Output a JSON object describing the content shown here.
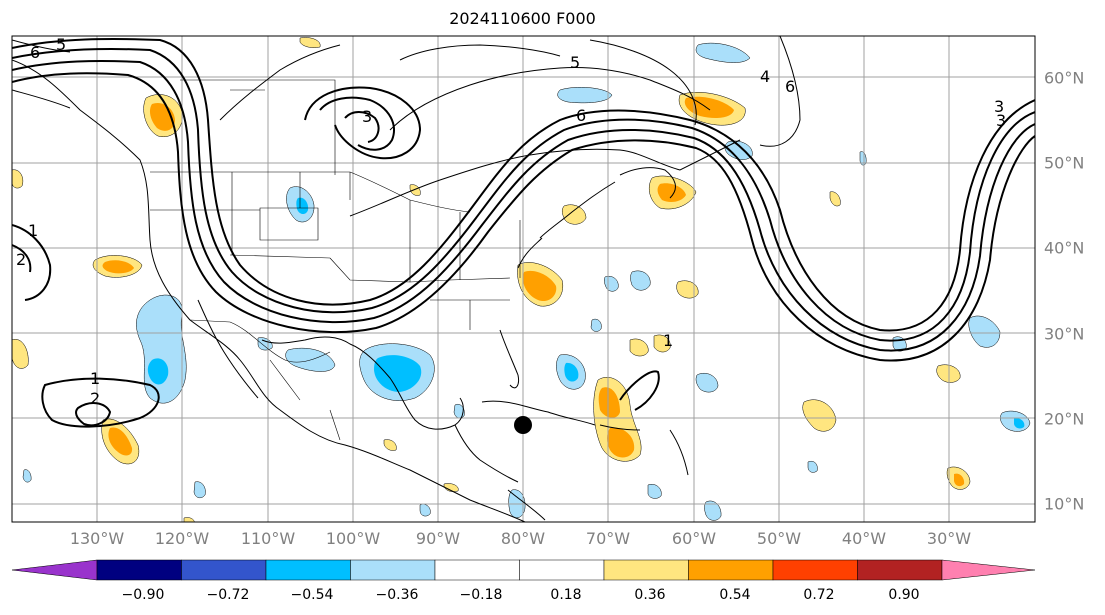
{
  "title": "2024110600 F000",
  "map": {
    "projection": "plate-carree",
    "lon_range": [
      -140,
      -20
    ],
    "lat_range": [
      8,
      65
    ],
    "grid": true,
    "lon_labels": [
      "130°W",
      "120°W",
      "110°W",
      "100°W",
      "90°W",
      "80°W",
      "70°W",
      "60°W",
      "50°W",
      "40°W",
      "30°W"
    ],
    "lat_labels": [
      "60°N",
      "50°N",
      "40°N",
      "30°N",
      "20°N",
      "10°N"
    ],
    "contour_labels": [
      "6",
      "5",
      "3",
      "6",
      "5",
      "4",
      "6",
      "3",
      "3",
      "1",
      "2",
      "1",
      "2",
      "1"
    ],
    "marker": {
      "lon": -80,
      "lat": 19,
      "symbol": "filled-circle"
    }
  },
  "colorbar": {
    "tick_labels": [
      "−0.90",
      "−0.72",
      "−0.54",
      "−0.36",
      "−0.18",
      "0.18",
      "0.36",
      "0.54",
      "0.72",
      "0.90"
    ],
    "colors": [
      "#9933cc",
      "#000080",
      "#3355cc",
      "#00bfff",
      "#aadffa",
      "#ffffff",
      "#ffe680",
      "#ffa000",
      "#ff4000",
      "#b22222",
      "#ff80b0"
    ],
    "extend": "both"
  }
}
